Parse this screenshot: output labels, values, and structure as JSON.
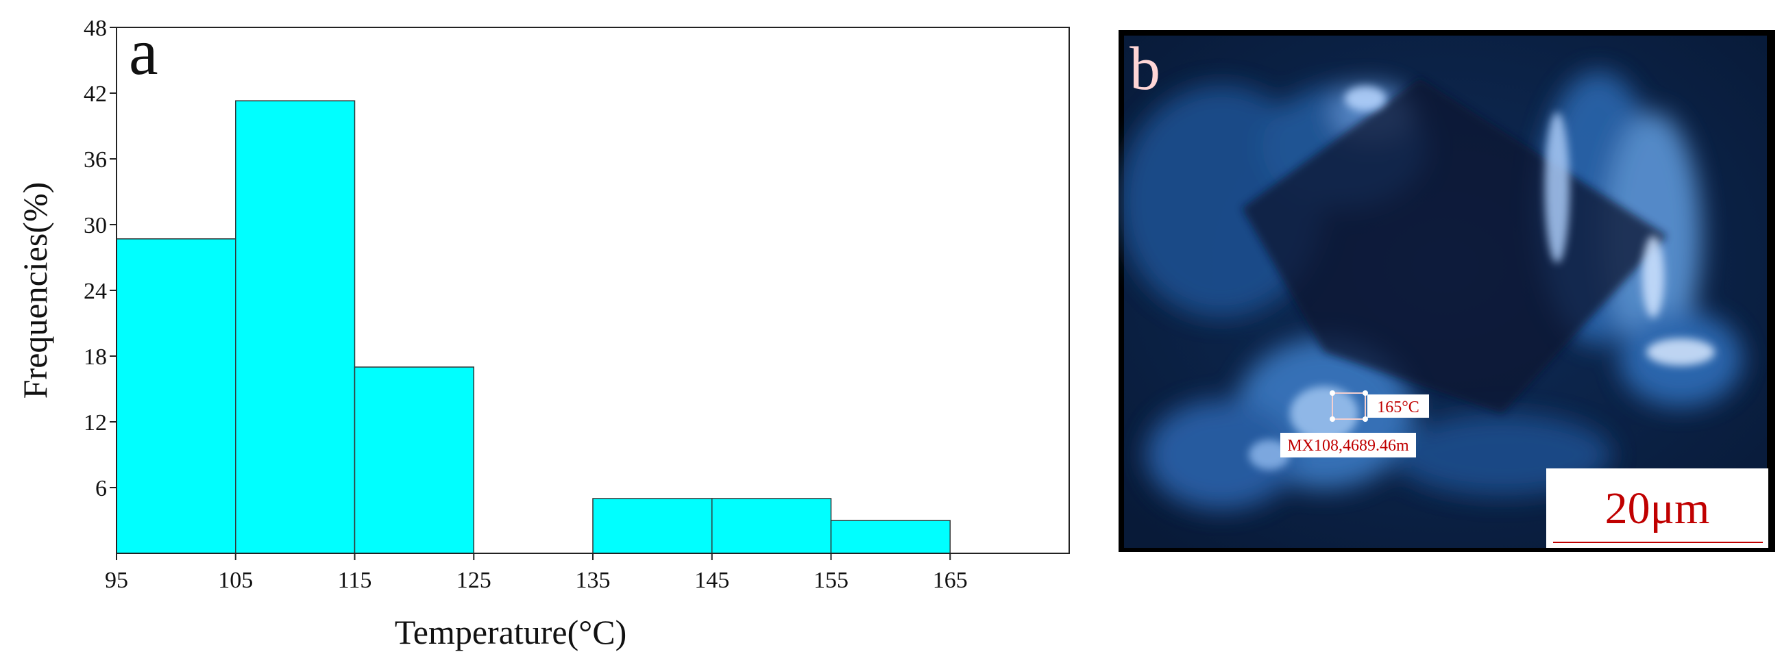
{
  "panel_a": {
    "label": "a",
    "label_color": "#d00000"
  },
  "panel_b": {
    "label": "b",
    "label_color": "#ffd6d6",
    "measurement_label": "165°C",
    "sample_label": "MX108,4689.46m",
    "scale_bar_label": "20μm",
    "text_color": "#c00000"
  },
  "chart_data": {
    "type": "bar",
    "xlabel": "Temperature(°C)",
    "ylabel": "Frequencies(%)",
    "xlim": [
      95,
      175
    ],
    "ylim": [
      0,
      48
    ],
    "x_ticks": [
      95,
      105,
      115,
      125,
      135,
      145,
      155,
      165
    ],
    "y_ticks": [
      6,
      12,
      18,
      24,
      30,
      36,
      42,
      48
    ],
    "bins": [
      {
        "from": 95,
        "to": 105,
        "value": 28.7
      },
      {
        "from": 105,
        "to": 115,
        "value": 41.3
      },
      {
        "from": 115,
        "to": 125,
        "value": 17
      },
      {
        "from": 125,
        "to": 135,
        "value": 0
      },
      {
        "from": 135,
        "to": 145,
        "value": 5
      },
      {
        "from": 145,
        "to": 155,
        "value": 5
      },
      {
        "from": 155,
        "to": 165,
        "value": 3
      }
    ],
    "bar_color": "#00ffff",
    "grid": false
  }
}
